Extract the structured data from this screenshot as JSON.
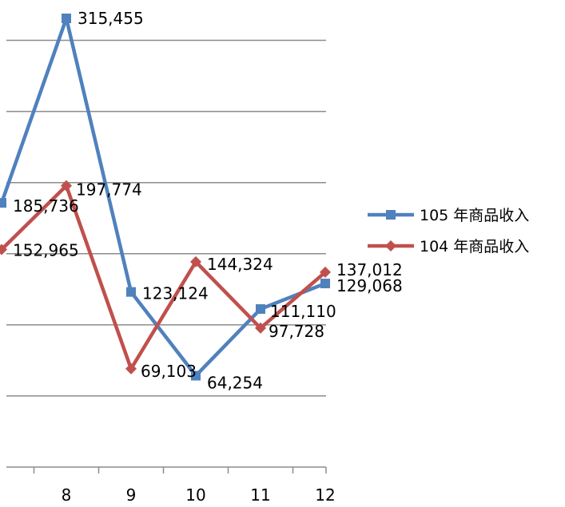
{
  "chart_data": {
    "type": "line",
    "title": "",
    "xlabel": "",
    "ylabel": "",
    "categories": [
      "8",
      "9",
      "10",
      "11",
      "12"
    ],
    "ylim": [
      0,
      350000
    ],
    "grid": true,
    "legend_position": "right",
    "series": [
      {
        "name": "105 年商品收入",
        "color": "#4f81bd",
        "marker": "square",
        "values": [
          315455,
          123124,
          64254,
          111110,
          129068
        ],
        "labels": [
          "315,455",
          "123,124",
          "64,254",
          "111,110",
          "129,068"
        ],
        "partial_prev": {
          "value": 185736,
          "label": "185,736"
        }
      },
      {
        "name": "104 年商品收入",
        "color": "#c0504d",
        "marker": "diamond",
        "values": [
          197774,
          69103,
          144324,
          97728,
          137012
        ],
        "labels": [
          "197,774",
          "69,103",
          "144,324",
          "97,728",
          "137,012"
        ],
        "partial_prev": {
          "value": 152965,
          "label": "152,965"
        }
      }
    ]
  }
}
